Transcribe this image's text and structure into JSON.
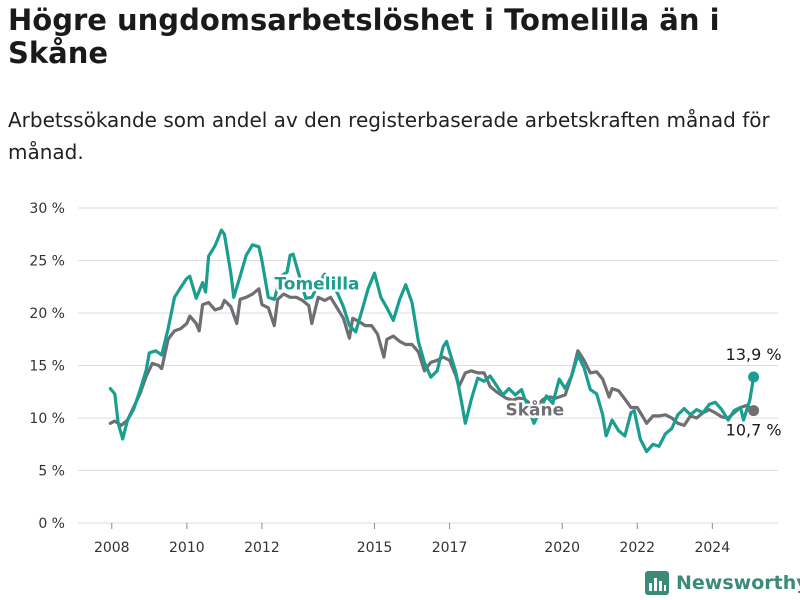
{
  "title": "Högre ungdomsarbetslöshet i Tomelilla än i Skåne",
  "subtitle": "Arbetssökande som andel av den registerbaserade arbetskraften månad för månad.",
  "brand": "Newsworthy",
  "colors": {
    "tomelilla": "#1a9e8f",
    "skane": "#6e6e73",
    "grid": "#dcdcdc",
    "brand": "#3b8a7a"
  },
  "chart_data": {
    "type": "line",
    "x_ticks": [
      "2008",
      "2010",
      "2012",
      "2015",
      "2017",
      "2020",
      "2022",
      "2024"
    ],
    "x_tick_values": [
      2008,
      2010,
      2012,
      2015,
      2017,
      2020,
      2022,
      2024
    ],
    "xlim": [
      2007.1,
      2025.75
    ],
    "y_ticks": [
      "0 %",
      "5 %",
      "10 %",
      "15 %",
      "20 %",
      "25 %",
      "30 %"
    ],
    "y_tick_values": [
      0,
      5,
      10,
      15,
      20,
      25,
      30
    ],
    "ylim": [
      0,
      30
    ],
    "grid": true,
    "legend": "none",
    "series": [
      {
        "name": "Tomelilla",
        "label": "Tomelilla",
        "end_label": "13,9 %",
        "points": [
          [
            2007.96,
            12.8
          ],
          [
            2008.08,
            12.3
          ],
          [
            2008.17,
            9.5
          ],
          [
            2008.29,
            8.0
          ],
          [
            2008.42,
            9.8
          ],
          [
            2008.58,
            10.8
          ],
          [
            2008.75,
            12.6
          ],
          [
            2008.92,
            14.6
          ],
          [
            2009.0,
            16.2
          ],
          [
            2009.17,
            16.4
          ],
          [
            2009.33,
            16.0
          ],
          [
            2009.5,
            18.5
          ],
          [
            2009.67,
            21.5
          ],
          [
            2009.83,
            22.4
          ],
          [
            2010.0,
            23.3
          ],
          [
            2010.08,
            23.5
          ],
          [
            2010.25,
            21.4
          ],
          [
            2010.42,
            22.9
          ],
          [
            2010.5,
            22.0
          ],
          [
            2010.58,
            25.4
          ],
          [
            2010.75,
            26.4
          ],
          [
            2010.92,
            27.9
          ],
          [
            2011.0,
            27.5
          ],
          [
            2011.17,
            23.8
          ],
          [
            2011.25,
            21.5
          ],
          [
            2011.42,
            23.5
          ],
          [
            2011.58,
            25.5
          ],
          [
            2011.75,
            26.5
          ],
          [
            2011.92,
            26.3
          ],
          [
            2012.0,
            25.0
          ],
          [
            2012.17,
            21.5
          ],
          [
            2012.33,
            21.3
          ],
          [
            2012.5,
            23.5
          ],
          [
            2012.67,
            23.9
          ],
          [
            2012.75,
            25.5
          ],
          [
            2012.83,
            25.6
          ],
          [
            2013.0,
            23.5
          ],
          [
            2013.17,
            21.4
          ],
          [
            2013.33,
            21.5
          ],
          [
            2013.5,
            22.7
          ],
          [
            2013.67,
            23.7
          ],
          [
            2013.83,
            22.5
          ],
          [
            2014.0,
            22.0
          ],
          [
            2014.17,
            20.6
          ],
          [
            2014.33,
            18.8
          ],
          [
            2014.5,
            18.2
          ],
          [
            2014.67,
            20.3
          ],
          [
            2014.83,
            22.3
          ],
          [
            2015.0,
            23.8
          ],
          [
            2015.17,
            21.5
          ],
          [
            2015.33,
            20.5
          ],
          [
            2015.5,
            19.3
          ],
          [
            2015.67,
            21.3
          ],
          [
            2015.83,
            22.7
          ],
          [
            2016.0,
            21.0
          ],
          [
            2016.17,
            17.3
          ],
          [
            2016.33,
            15.3
          ],
          [
            2016.5,
            13.9
          ],
          [
            2016.67,
            14.5
          ],
          [
            2016.83,
            16.8
          ],
          [
            2016.92,
            17.3
          ],
          [
            2017.0,
            16.3
          ],
          [
            2017.17,
            14.3
          ],
          [
            2017.33,
            11.3
          ],
          [
            2017.42,
            9.5
          ],
          [
            2017.58,
            11.8
          ],
          [
            2017.75,
            13.8
          ],
          [
            2017.92,
            13.5
          ],
          [
            2018.08,
            14.0
          ],
          [
            2018.25,
            13.1
          ],
          [
            2018.42,
            12.2
          ],
          [
            2018.58,
            12.8
          ],
          [
            2018.75,
            12.2
          ],
          [
            2018.92,
            12.7
          ],
          [
            2019.08,
            11.0
          ],
          [
            2019.25,
            9.5
          ],
          [
            2019.42,
            10.8
          ],
          [
            2019.58,
            12.1
          ],
          [
            2019.75,
            11.4
          ],
          [
            2019.92,
            13.7
          ],
          [
            2020.08,
            12.8
          ],
          [
            2020.25,
            14.0
          ],
          [
            2020.42,
            16.0
          ],
          [
            2020.58,
            14.8
          ],
          [
            2020.75,
            12.7
          ],
          [
            2020.92,
            12.3
          ],
          [
            2021.08,
            10.3
          ],
          [
            2021.17,
            8.3
          ],
          [
            2021.33,
            9.8
          ],
          [
            2021.5,
            8.8
          ],
          [
            2021.67,
            8.3
          ],
          [
            2021.83,
            10.5
          ],
          [
            2021.92,
            10.7
          ],
          [
            2022.08,
            8.0
          ],
          [
            2022.25,
            6.8
          ],
          [
            2022.42,
            7.5
          ],
          [
            2022.58,
            7.3
          ],
          [
            2022.75,
            8.5
          ],
          [
            2022.92,
            9.0
          ],
          [
            2023.08,
            10.3
          ],
          [
            2023.25,
            10.9
          ],
          [
            2023.42,
            10.3
          ],
          [
            2023.58,
            10.8
          ],
          [
            2023.75,
            10.5
          ],
          [
            2023.92,
            11.3
          ],
          [
            2024.08,
            11.5
          ],
          [
            2024.25,
            10.8
          ],
          [
            2024.42,
            9.8
          ],
          [
            2024.58,
            10.7
          ],
          [
            2024.75,
            11.0
          ],
          [
            2024.83,
            9.8
          ],
          [
            2025.0,
            11.7
          ],
          [
            2025.1,
            13.9
          ]
        ]
      },
      {
        "name": "Skåne",
        "label": "Skåne",
        "end_label": "10,7 %",
        "points": [
          [
            2007.96,
            9.5
          ],
          [
            2008.08,
            9.7
          ],
          [
            2008.25,
            9.3
          ],
          [
            2008.42,
            9.8
          ],
          [
            2008.58,
            11.0
          ],
          [
            2008.75,
            12.3
          ],
          [
            2008.92,
            14.0
          ],
          [
            2009.08,
            15.2
          ],
          [
            2009.25,
            15.0
          ],
          [
            2009.33,
            14.7
          ],
          [
            2009.5,
            17.5
          ],
          [
            2009.67,
            18.3
          ],
          [
            2009.83,
            18.5
          ],
          [
            2010.0,
            19.0
          ],
          [
            2010.08,
            19.7
          ],
          [
            2010.25,
            19.0
          ],
          [
            2010.33,
            18.3
          ],
          [
            2010.42,
            20.8
          ],
          [
            2010.58,
            21.0
          ],
          [
            2010.75,
            20.3
          ],
          [
            2010.92,
            20.5
          ],
          [
            2011.0,
            21.2
          ],
          [
            2011.17,
            20.6
          ],
          [
            2011.33,
            19.0
          ],
          [
            2011.42,
            21.3
          ],
          [
            2011.58,
            21.5
          ],
          [
            2011.75,
            21.8
          ],
          [
            2011.92,
            22.3
          ],
          [
            2012.0,
            20.8
          ],
          [
            2012.17,
            20.5
          ],
          [
            2012.33,
            18.8
          ],
          [
            2012.42,
            21.3
          ],
          [
            2012.58,
            21.8
          ],
          [
            2012.75,
            21.5
          ],
          [
            2012.92,
            21.5
          ],
          [
            2013.08,
            21.2
          ],
          [
            2013.25,
            20.7
          ],
          [
            2013.33,
            19.0
          ],
          [
            2013.5,
            21.5
          ],
          [
            2013.67,
            21.2
          ],
          [
            2013.83,
            21.5
          ],
          [
            2014.0,
            20.5
          ],
          [
            2014.17,
            19.5
          ],
          [
            2014.33,
            17.6
          ],
          [
            2014.42,
            19.5
          ],
          [
            2014.58,
            19.2
          ],
          [
            2014.75,
            18.8
          ],
          [
            2014.92,
            18.8
          ],
          [
            2015.08,
            18.0
          ],
          [
            2015.25,
            15.8
          ],
          [
            2015.33,
            17.5
          ],
          [
            2015.5,
            17.8
          ],
          [
            2015.67,
            17.3
          ],
          [
            2015.83,
            17.0
          ],
          [
            2016.0,
            17.0
          ],
          [
            2016.17,
            16.3
          ],
          [
            2016.33,
            14.5
          ],
          [
            2016.5,
            15.3
          ],
          [
            2016.67,
            15.5
          ],
          [
            2016.83,
            15.8
          ],
          [
            2017.0,
            15.5
          ],
          [
            2017.17,
            14.0
          ],
          [
            2017.25,
            13.0
          ],
          [
            2017.42,
            14.3
          ],
          [
            2017.58,
            14.5
          ],
          [
            2017.75,
            14.3
          ],
          [
            2017.92,
            14.3
          ],
          [
            2018.08,
            13.0
          ],
          [
            2018.25,
            12.5
          ],
          [
            2018.5,
            11.9
          ],
          [
            2018.67,
            11.7
          ],
          [
            2018.83,
            11.9
          ],
          [
            2019.0,
            11.8
          ],
          [
            2019.17,
            11.3
          ],
          [
            2019.33,
            11.2
          ],
          [
            2019.5,
            11.8
          ],
          [
            2019.67,
            12.0
          ],
          [
            2019.83,
            11.9
          ],
          [
            2020.08,
            12.2
          ],
          [
            2020.25,
            14.0
          ],
          [
            2020.42,
            16.4
          ],
          [
            2020.58,
            15.5
          ],
          [
            2020.75,
            14.3
          ],
          [
            2020.92,
            14.4
          ],
          [
            2021.08,
            13.7
          ],
          [
            2021.25,
            12.0
          ],
          [
            2021.33,
            12.8
          ],
          [
            2021.5,
            12.6
          ],
          [
            2021.67,
            11.8
          ],
          [
            2021.83,
            11.0
          ],
          [
            2022.0,
            11.0
          ],
          [
            2022.17,
            10.0
          ],
          [
            2022.25,
            9.5
          ],
          [
            2022.42,
            10.2
          ],
          [
            2022.58,
            10.2
          ],
          [
            2022.75,
            10.3
          ],
          [
            2022.92,
            10.0
          ],
          [
            2023.08,
            9.5
          ],
          [
            2023.25,
            9.3
          ],
          [
            2023.42,
            10.2
          ],
          [
            2023.58,
            10.0
          ],
          [
            2023.75,
            10.5
          ],
          [
            2023.92,
            10.8
          ],
          [
            2024.08,
            10.5
          ],
          [
            2024.25,
            10.1
          ],
          [
            2024.42,
            10.0
          ],
          [
            2024.58,
            10.5
          ],
          [
            2024.75,
            11.0
          ],
          [
            2024.92,
            11.2
          ],
          [
            2025.1,
            10.7
          ]
        ]
      }
    ]
  }
}
